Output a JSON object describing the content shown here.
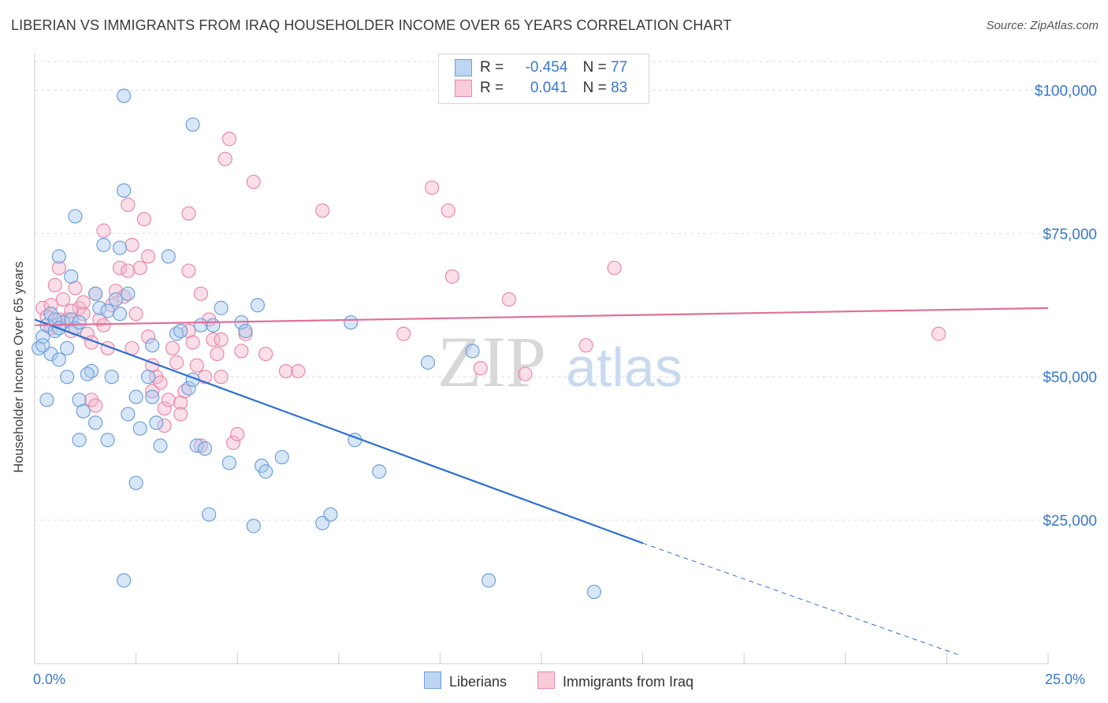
{
  "title": "LIBERIAN VS IMMIGRANTS FROM IRAQ HOUSEHOLDER INCOME OVER 65 YEARS CORRELATION CHART",
  "source": "Source: ZipAtlas.com",
  "watermark": {
    "zip": "ZIP",
    "atlas": "atlas"
  },
  "colors": {
    "blue_fill": "#a9c9f0",
    "blue_stroke": "#6f9fd8",
    "blue_line": "#2f6fcf",
    "pink_fill": "#f5b9cc",
    "pink_stroke": "#e88aa8",
    "pink_line": "#e0709a",
    "tick_label": "#3a78c9",
    "grid": "#dddddd"
  },
  "legend": {
    "rows": [
      {
        "r_label": "R =",
        "r_value": "-0.454",
        "n_label": "N =",
        "n_value": "77"
      },
      {
        "r_label": "R =",
        "r_value": "0.041",
        "n_label": "N =",
        "n_value": "83"
      }
    ]
  },
  "bottom_legend": [
    "Liberians",
    "Immigrants from Iraq"
  ],
  "chart_data": {
    "type": "scatter",
    "title": "LIBERIAN VS IMMIGRANTS FROM IRAQ HOUSEHOLDER INCOME OVER 65 YEARS CORRELATION CHART",
    "xlabel": "",
    "ylabel": "Householder Income Over 65 years",
    "xlim": [
      0,
      25
    ],
    "ylim": [
      0,
      105000
    ],
    "x_tick_labels": [
      "0.0%",
      "25.0%"
    ],
    "y_ticks": [
      25000,
      50000,
      75000,
      100000
    ],
    "y_tick_labels": [
      "$25,000",
      "$50,000",
      "$75,000",
      "$100,000"
    ],
    "grid": true,
    "legend_position": "top-center",
    "series": [
      {
        "name": "Liberians",
        "r": -0.454,
        "n": 77,
        "trend": {
          "x0": 0,
          "y0": 60000,
          "x1": 15,
          "y1": 21000,
          "dashed_to_x": 22.8,
          "dashed_to_y": 1500
        },
        "points": [
          [
            0.1,
            55000
          ],
          [
            0.2,
            57000
          ],
          [
            0.3,
            59000
          ],
          [
            0.4,
            61000
          ],
          [
            0.5,
            58000
          ],
          [
            0.4,
            54000
          ],
          [
            0.6,
            53000
          ],
          [
            0.3,
            46000
          ],
          [
            0.7,
            59500
          ],
          [
            0.8,
            55000
          ],
          [
            0.9,
            60000
          ],
          [
            0.6,
            71000
          ],
          [
            0.9,
            67500
          ],
          [
            1.0,
            58500
          ],
          [
            1.1,
            59500
          ],
          [
            0.8,
            50000
          ],
          [
            1.1,
            46000
          ],
          [
            1.2,
            44000
          ],
          [
            1.1,
            39000
          ],
          [
            1.4,
            51000
          ],
          [
            1.5,
            64500
          ],
          [
            1.6,
            62000
          ],
          [
            1.7,
            73000
          ],
          [
            1.8,
            61500
          ],
          [
            1.9,
            50000
          ],
          [
            1.8,
            39000
          ],
          [
            1.5,
            42000
          ],
          [
            2.0,
            63500
          ],
          [
            2.1,
            61000
          ],
          [
            2.1,
            72500
          ],
          [
            2.3,
            64500
          ],
          [
            2.2,
            82500
          ],
          [
            2.3,
            43500
          ],
          [
            2.5,
            46500
          ],
          [
            2.6,
            41000
          ],
          [
            2.8,
            50000
          ],
          [
            2.9,
            46500
          ],
          [
            2.9,
            55500
          ],
          [
            3.1,
            38000
          ],
          [
            3.0,
            42000
          ],
          [
            3.3,
            71000
          ],
          [
            3.5,
            57500
          ],
          [
            3.6,
            58000
          ],
          [
            3.8,
            48000
          ],
          [
            3.9,
            49500
          ],
          [
            4.0,
            38000
          ],
          [
            4.1,
            59000
          ],
          [
            4.2,
            37500
          ],
          [
            4.3,
            26000
          ],
          [
            4.4,
            59000
          ],
          [
            4.6,
            62000
          ],
          [
            4.8,
            35000
          ],
          [
            5.1,
            59500
          ],
          [
            5.2,
            58000
          ],
          [
            5.4,
            24000
          ],
          [
            5.5,
            62500
          ],
          [
            5.6,
            34500
          ],
          [
            5.7,
            33500
          ],
          [
            6.1,
            36000
          ],
          [
            7.1,
            24500
          ],
          [
            7.3,
            26000
          ],
          [
            7.8,
            59500
          ],
          [
            7.9,
            39000
          ],
          [
            8.5,
            33500
          ],
          [
            9.7,
            52500
          ],
          [
            10.8,
            54500
          ],
          [
            11.2,
            14500
          ],
          [
            13.8,
            12500
          ],
          [
            2.2,
            14500
          ],
          [
            2.5,
            31500
          ],
          [
            3.9,
            94000
          ],
          [
            1.0,
            78000
          ],
          [
            2.2,
            99000
          ],
          [
            0.5,
            60000
          ],
          [
            0.6,
            58500
          ],
          [
            0.2,
            55500
          ],
          [
            1.3,
            50500
          ]
        ]
      },
      {
        "name": "Immigrants from Iraq",
        "r": 0.041,
        "n": 83,
        "trend": {
          "x0": 0,
          "y0": 59000,
          "x1": 25,
          "y1": 62000
        },
        "points": [
          [
            0.2,
            62000
          ],
          [
            0.3,
            60500
          ],
          [
            0.4,
            58500
          ],
          [
            0.5,
            66000
          ],
          [
            0.6,
            69000
          ],
          [
            0.7,
            63500
          ],
          [
            0.8,
            60000
          ],
          [
            0.9,
            58000
          ],
          [
            1.0,
            65500
          ],
          [
            1.1,
            62000
          ],
          [
            1.2,
            61000
          ],
          [
            1.3,
            57500
          ],
          [
            1.4,
            56000
          ],
          [
            1.5,
            64500
          ],
          [
            1.6,
            60000
          ],
          [
            1.7,
            59000
          ],
          [
            1.8,
            55000
          ],
          [
            1.9,
            62500
          ],
          [
            2.0,
            65000
          ],
          [
            2.1,
            69000
          ],
          [
            2.2,
            64000
          ],
          [
            2.3,
            68500
          ],
          [
            2.4,
            73000
          ],
          [
            2.5,
            61000
          ],
          [
            2.6,
            69000
          ],
          [
            2.7,
            77500
          ],
          [
            2.8,
            71000
          ],
          [
            2.9,
            52000
          ],
          [
            3.0,
            50000
          ],
          [
            3.1,
            49000
          ],
          [
            3.2,
            44500
          ],
          [
            3.3,
            46000
          ],
          [
            3.4,
            55000
          ],
          [
            3.5,
            52500
          ],
          [
            3.6,
            45500
          ],
          [
            3.7,
            47500
          ],
          [
            3.8,
            58000
          ],
          [
            3.9,
            56000
          ],
          [
            4.0,
            52000
          ],
          [
            4.1,
            38000
          ],
          [
            4.2,
            50000
          ],
          [
            4.3,
            60000
          ],
          [
            4.4,
            56500
          ],
          [
            4.5,
            54000
          ],
          [
            4.6,
            56500
          ],
          [
            4.7,
            88000
          ],
          [
            4.8,
            91500
          ],
          [
            4.9,
            38500
          ],
          [
            5.0,
            40000
          ],
          [
            5.2,
            57500
          ],
          [
            5.4,
            84000
          ],
          [
            5.7,
            54000
          ],
          [
            6.2,
            51000
          ],
          [
            6.5,
            51000
          ],
          [
            7.1,
            79000
          ],
          [
            9.1,
            57500
          ],
          [
            9.8,
            83000
          ],
          [
            10.2,
            79000
          ],
          [
            10.3,
            67500
          ],
          [
            11.0,
            51500
          ],
          [
            11.7,
            63500
          ],
          [
            12.1,
            50500
          ],
          [
            13.6,
            55500
          ],
          [
            14.3,
            69000
          ],
          [
            22.3,
            57500
          ],
          [
            1.7,
            75500
          ],
          [
            2.3,
            80000
          ],
          [
            2.4,
            55000
          ],
          [
            3.8,
            78500
          ],
          [
            3.8,
            68500
          ],
          [
            4.1,
            64500
          ],
          [
            2.9,
            47500
          ],
          [
            1.4,
            46000
          ],
          [
            1.5,
            45000
          ],
          [
            0.9,
            61500
          ],
          [
            1.2,
            63000
          ],
          [
            0.4,
            62500
          ],
          [
            0.6,
            60000
          ],
          [
            3.2,
            41500
          ],
          [
            2.8,
            57000
          ],
          [
            5.1,
            54500
          ],
          [
            4.6,
            50000
          ],
          [
            3.6,
            43500
          ]
        ]
      }
    ]
  }
}
